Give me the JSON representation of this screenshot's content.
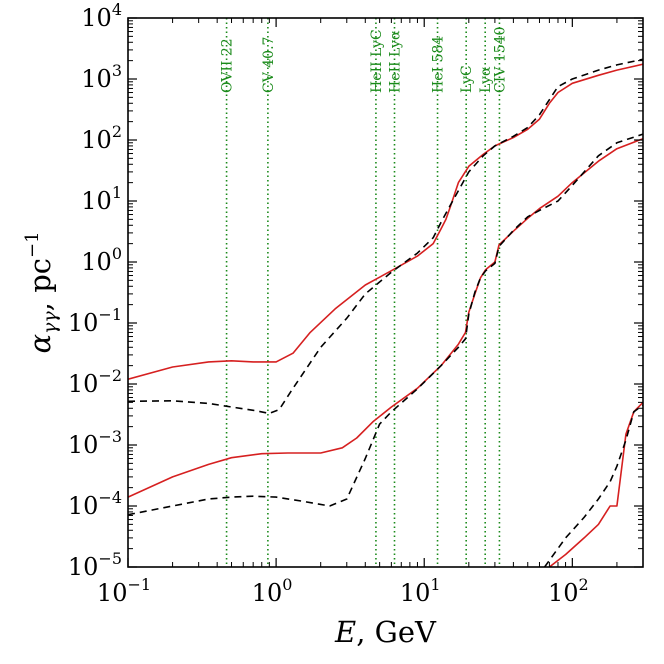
{
  "chart_data": {
    "type": "line",
    "xscale": "log",
    "yscale": "log",
    "xlim": [
      0.1,
      300
    ],
    "ylim": [
      1e-05,
      10000.0
    ],
    "xlabel": {
      "symbol": "E",
      "rest": ", GeV"
    },
    "ylabel": {
      "symbol": "α",
      "sub": "γγ",
      "rest": ", pc",
      "sup": "−1"
    },
    "xticks": [
      {
        "base": "10",
        "exp": "−1",
        "value": 0.1
      },
      {
        "base": "10",
        "exp": "0",
        "value": 1
      },
      {
        "base": "10",
        "exp": "1",
        "value": 10
      },
      {
        "base": "10",
        "exp": "2",
        "value": 100
      }
    ],
    "yticks": [
      {
        "base": "10",
        "exp": "−5",
        "value": 1e-05
      },
      {
        "base": "10",
        "exp": "−4",
        "value": 0.0001
      },
      {
        "base": "10",
        "exp": "−3",
        "value": 0.001
      },
      {
        "base": "10",
        "exp": "−2",
        "value": 0.01
      },
      {
        "base": "10",
        "exp": "−1",
        "value": 0.1
      },
      {
        "base": "10",
        "exp": "0",
        "value": 1
      },
      {
        "base": "10",
        "exp": "1",
        "value": 10
      },
      {
        "base": "10",
        "exp": "2",
        "value": 100
      },
      {
        "base": "10",
        "exp": "3",
        "value": 1000
      },
      {
        "base": "10",
        "exp": "4",
        "value": 10000
      }
    ],
    "line_color": "#d62020",
    "dash_color": "#000000",
    "annot_color": "#1a8a1a",
    "vlines": [
      {
        "label": "OVII 22",
        "x": 0.463
      },
      {
        "label": "CV 40.7",
        "x": 0.88
      },
      {
        "label": "HeII LyC",
        "x": 4.72
      },
      {
        "label": "HeII Lyα",
        "x": 6.3
      },
      {
        "label": "HeI 584",
        "x": 12.3
      },
      {
        "label": "LyC",
        "x": 19.2
      },
      {
        "label": "Lyα",
        "x": 25.8
      },
      {
        "label": "CIV 1540",
        "x": 32.2
      }
    ],
    "series": [
      {
        "name": "upper-solid",
        "style": "solid",
        "x": [
          0.1,
          0.2,
          0.35,
          0.5,
          0.7,
          1.0,
          1.3,
          1.7,
          2.5,
          4.0,
          6.0,
          9.0,
          11.5,
          13.0,
          14.0,
          15.0,
          17.0,
          20.0,
          25.0,
          30.0,
          40.0,
          50.0,
          60.0,
          70.0,
          80.0,
          100.0,
          150.0,
          200.0,
          300.0
        ],
        "y": [
          0.012,
          0.019,
          0.023,
          0.024,
          0.023,
          0.023,
          0.032,
          0.07,
          0.17,
          0.42,
          0.72,
          1.25,
          2.0,
          3.5,
          5.0,
          8.0,
          20.0,
          37.0,
          58.0,
          80.0,
          110.0,
          150.0,
          220.0,
          400.0,
          600.0,
          850.0,
          1150.0,
          1400.0,
          1750.0
        ]
      },
      {
        "name": "upper-dashed",
        "style": "dashed",
        "x": [
          0.1,
          0.2,
          0.35,
          0.5,
          0.7,
          0.9,
          1.05,
          1.3,
          2.0,
          3.0,
          4.0,
          6.0,
          9.0,
          11.5,
          13.0,
          15.0,
          20.0,
          25.0,
          30.0,
          40.0,
          50.0,
          60.0,
          80.0,
          100.0,
          150.0,
          200.0,
          300.0
        ],
        "y": [
          0.0052,
          0.0053,
          0.0048,
          0.0042,
          0.0037,
          0.0033,
          0.0038,
          0.0085,
          0.04,
          0.12,
          0.3,
          0.68,
          1.4,
          2.5,
          4.5,
          8.5,
          30.0,
          55.0,
          80.0,
          115.0,
          160.0,
          260.0,
          750.0,
          1000.0,
          1400.0,
          1700.0,
          2100.0
        ]
      },
      {
        "name": "middle-solid",
        "style": "solid",
        "x": [
          0.1,
          0.2,
          0.35,
          0.5,
          0.8,
          1.2,
          2.0,
          2.8,
          3.5,
          4.5,
          6.0,
          9.0,
          13.0,
          17.0,
          19.0,
          20.0,
          22.0,
          24.0,
          26.0,
          30.0,
          32.0,
          40.0,
          50.0,
          60.0,
          80.0,
          100.0,
          150.0,
          200.0,
          300.0
        ],
        "y": [
          0.00014,
          0.0003,
          0.00048,
          0.00062,
          0.00072,
          0.00074,
          0.00074,
          0.0009,
          0.0013,
          0.0024,
          0.0042,
          0.0085,
          0.02,
          0.045,
          0.07,
          0.15,
          0.3,
          0.55,
          0.75,
          1.0,
          1.9,
          3.2,
          5.2,
          7.5,
          12.0,
          20.0,
          45.0,
          72.0,
          105.0
        ]
      },
      {
        "name": "middle-dashed",
        "style": "dashed",
        "x": [
          0.1,
          0.2,
          0.35,
          0.5,
          0.7,
          1.0,
          1.5,
          2.3,
          3.0,
          4.0,
          5.0,
          6.0,
          9.0,
          13.0,
          17.0,
          19.0,
          20.0,
          22.0,
          24.0,
          26.0,
          30.0,
          32.0,
          40.0,
          50.0,
          60.0,
          80.0,
          100.0,
          150.0,
          200.0,
          300.0
        ],
        "y": [
          7.2e-05,
          0.0001,
          0.00013,
          0.00014,
          0.000145,
          0.00014,
          0.00012,
          0.0001,
          0.00013,
          0.0006,
          0.0022,
          0.0035,
          0.0083,
          0.02,
          0.04,
          0.055,
          0.14,
          0.32,
          0.55,
          0.72,
          0.95,
          1.8,
          3.3,
          5.5,
          7.0,
          10.0,
          18.0,
          55.0,
          90.0,
          125.0
        ]
      },
      {
        "name": "lower-solid",
        "style": "solid",
        "x": [
          70.0,
          90.0,
          120.0,
          150.0,
          180.0,
          200.0,
          230.0,
          260.0,
          300.0
        ],
        "y": [
          1e-05,
          1.6e-05,
          3e-05,
          5e-05,
          0.0001,
          0.0001,
          0.0015,
          0.0035,
          0.005
        ]
      },
      {
        "name": "lower-dashed",
        "style": "dashed",
        "x": [
          65.0,
          90.0,
          120.0,
          150.0,
          180.0,
          200.0,
          230.0,
          260.0,
          300.0
        ],
        "y": [
          1e-05,
          3e-05,
          6.5e-05,
          0.00013,
          0.00025,
          0.00045,
          0.0012,
          0.0035,
          0.0045
        ]
      }
    ]
  }
}
